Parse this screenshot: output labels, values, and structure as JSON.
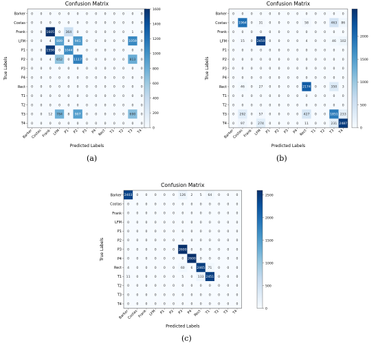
{
  "panel_labels": [
    "(a)",
    "(b)",
    "(c)"
  ],
  "chart_data": [
    {
      "type": "heatmap",
      "title": "Confusion Matrix",
      "xlabel": "Predicted Labels",
      "ylabel": "True Labels",
      "classes": [
        "Barker",
        "Costas",
        "Frank",
        "LFM",
        "P1",
        "P2",
        "P3",
        "P4",
        "Rect",
        "T1",
        "T2",
        "T3",
        "T4"
      ],
      "color_range": [
        0,
        1600
      ],
      "colorbar_ticks": [
        0,
        200,
        400,
        600,
        800,
        1000,
        1200,
        1400,
        1600
      ],
      "matrix": [
        [
          0,
          0,
          0,
          0,
          0,
          0,
          0,
          0,
          0,
          0,
          0,
          0,
          0
        ],
        [
          0,
          0,
          0,
          0,
          0,
          0,
          0,
          0,
          0,
          0,
          0,
          0,
          0
        ],
        [
          0,
          0,
          1605,
          0,
          364,
          0,
          0,
          0,
          0,
          0,
          0,
          1,
          0
        ],
        [
          0,
          0,
          4,
          889,
          8,
          941,
          0,
          0,
          0,
          0,
          0,
          1059,
          0
        ],
        [
          0,
          0,
          1556,
          0,
          1044,
          0,
          0,
          0,
          0,
          0,
          0,
          0,
          0
        ],
        [
          0,
          0,
          4,
          652,
          0,
          1117,
          0,
          0,
          0,
          0,
          0,
          813,
          0
        ],
        [
          0,
          0,
          0,
          0,
          0,
          0,
          0,
          0,
          0,
          0,
          0,
          0,
          0
        ],
        [
          0,
          0,
          0,
          0,
          0,
          0,
          0,
          0,
          0,
          0,
          0,
          0,
          0
        ],
        [
          0,
          0,
          0,
          0,
          0,
          0,
          0,
          0,
          0,
          0,
          0,
          0,
          0
        ],
        [
          0,
          0,
          0,
          0,
          0,
          0,
          0,
          0,
          0,
          0,
          0,
          0,
          0
        ],
        [
          0,
          0,
          0,
          0,
          0,
          0,
          0,
          0,
          0,
          0,
          0,
          0,
          0
        ],
        [
          0,
          0,
          12,
          784,
          8,
          907,
          0,
          0,
          0,
          0,
          0,
          690,
          0
        ],
        [
          0,
          0,
          0,
          0,
          0,
          0,
          0,
          0,
          0,
          0,
          0,
          0,
          0
        ]
      ]
    },
    {
      "type": "heatmap",
      "title": "Confusion Matrix",
      "xlabel": "Predicted Labels",
      "ylabel": "True Labels",
      "classes": [
        "Barker",
        "Costas",
        "Frank",
        "LFM",
        "P1",
        "P2",
        "P3",
        "P4",
        "Rect",
        "T1",
        "T2",
        "T3",
        "T4"
      ],
      "color_range": [
        0,
        2600
      ],
      "colorbar_ticks": [
        0,
        500,
        1000,
        1500,
        2000
      ],
      "matrix": [
        [
          0,
          0,
          0,
          0,
          0,
          0,
          0,
          0,
          0,
          0,
          0,
          0,
          0
        ],
        [
          0,
          1964,
          0,
          31,
          0,
          0,
          0,
          0,
          58,
          0,
          0,
          463,
          86
        ],
        [
          0,
          0,
          0,
          0,
          0,
          0,
          0,
          0,
          0,
          0,
          0,
          0,
          0
        ],
        [
          0,
          15,
          0,
          2450,
          0,
          0,
          0,
          0,
          4,
          0,
          0,
          46,
          102
        ],
        [
          0,
          0,
          0,
          0,
          0,
          0,
          0,
          0,
          0,
          0,
          0,
          0,
          0
        ],
        [
          0,
          0,
          0,
          0,
          0,
          0,
          0,
          0,
          0,
          0,
          0,
          0,
          0
        ],
        [
          0,
          0,
          0,
          0,
          0,
          0,
          0,
          0,
          0,
          0,
          0,
          0,
          0
        ],
        [
          0,
          0,
          0,
          0,
          0,
          0,
          0,
          0,
          0,
          0,
          0,
          0,
          0
        ],
        [
          0,
          46,
          0,
          27,
          0,
          0,
          0,
          0,
          2174,
          0,
          0,
          350,
          3
        ],
        [
          0,
          0,
          0,
          0,
          0,
          0,
          0,
          0,
          0,
          0,
          0,
          0,
          0
        ],
        [
          0,
          0,
          0,
          0,
          0,
          0,
          0,
          0,
          0,
          0,
          0,
          0,
          0
        ],
        [
          0,
          292,
          0,
          57,
          0,
          0,
          0,
          0,
          427,
          0,
          0,
          1851,
          233
        ],
        [
          0,
          97,
          0,
          274,
          0,
          0,
          0,
          0,
          11,
          0,
          0,
          231,
          2487
        ]
      ]
    },
    {
      "type": "heatmap",
      "title": "Confusion Matrix",
      "xlabel": "Predicted Labels",
      "ylabel": "True Labels",
      "classes": [
        "Barker",
        "Costas",
        "Frank",
        "LFM",
        "P1",
        "P2",
        "P3",
        "P4",
        "Rect",
        "T1",
        "T2",
        "T3",
        "T4"
      ],
      "color_range": [
        0,
        2600
      ],
      "colorbar_ticks": [
        0,
        500,
        1000,
        1500,
        2000,
        2500
      ],
      "matrix": [
        [
          2403,
          0,
          0,
          0,
          0,
          0,
          126,
          2,
          5,
          64,
          0,
          0,
          0
        ],
        [
          0,
          0,
          0,
          0,
          0,
          0,
          0,
          0,
          0,
          0,
          0,
          0,
          0
        ],
        [
          0,
          0,
          0,
          0,
          0,
          0,
          0,
          0,
          0,
          0,
          0,
          0,
          0
        ],
        [
          0,
          0,
          0,
          0,
          0,
          0,
          0,
          0,
          0,
          0,
          0,
          0,
          0
        ],
        [
          0,
          0,
          0,
          0,
          0,
          0,
          0,
          0,
          0,
          0,
          0,
          0,
          0
        ],
        [
          0,
          0,
          0,
          0,
          0,
          0,
          0,
          0,
          0,
          0,
          0,
          0,
          0
        ],
        [
          0,
          0,
          0,
          0,
          0,
          0,
          2600,
          0,
          0,
          0,
          0,
          0,
          0
        ],
        [
          0,
          0,
          0,
          0,
          0,
          0,
          0,
          2600,
          0,
          0,
          0,
          0,
          0
        ],
        [
          4,
          0,
          0,
          0,
          0,
          0,
          60,
          6,
          2465,
          71,
          0,
          0,
          0
        ],
        [
          11,
          0,
          0,
          0,
          0,
          0,
          5,
          0,
          133,
          2451,
          0,
          0,
          0
        ],
        [
          0,
          0,
          0,
          0,
          0,
          0,
          0,
          0,
          0,
          0,
          0,
          0,
          0
        ],
        [
          0,
          0,
          0,
          0,
          0,
          0,
          0,
          0,
          0,
          0,
          0,
          0,
          0
        ],
        [
          0,
          0,
          0,
          0,
          0,
          0,
          0,
          0,
          0,
          0,
          0,
          0,
          0
        ]
      ]
    }
  ]
}
